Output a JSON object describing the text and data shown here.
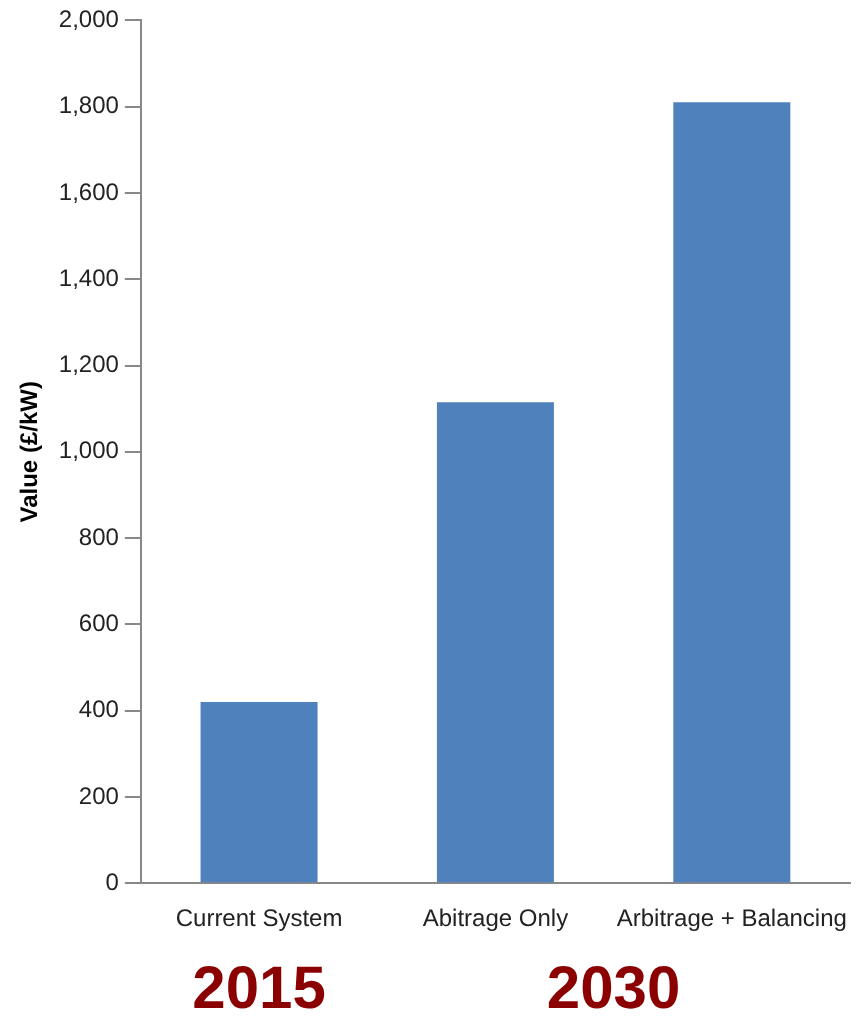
{
  "chart_data": {
    "type": "bar",
    "ylabel": "Value (£/kW)",
    "categories": [
      "Current System",
      "Abitrage Only",
      "Arbitrage + Balancing"
    ],
    "values": [
      420,
      1115,
      1810
    ],
    "color": "#4f81bd",
    "ylim": [
      0,
      2000
    ],
    "yticks": [
      {
        "value": 0,
        "label": "0"
      },
      {
        "value": 200,
        "label": "200"
      },
      {
        "value": 400,
        "label": "400"
      },
      {
        "value": 600,
        "label": "600"
      },
      {
        "value": 800,
        "label": "800"
      },
      {
        "value": 1000,
        "label": "1,000"
      },
      {
        "value": 1200,
        "label": "1,200"
      },
      {
        "value": 1400,
        "label": "1,400"
      },
      {
        "value": 1600,
        "label": "1,600"
      },
      {
        "value": 1800,
        "label": "1,800"
      },
      {
        "value": 2000,
        "label": "2,000"
      }
    ],
    "grid": false,
    "legend": false,
    "annotations": [
      "2015",
      "2030"
    ]
  }
}
